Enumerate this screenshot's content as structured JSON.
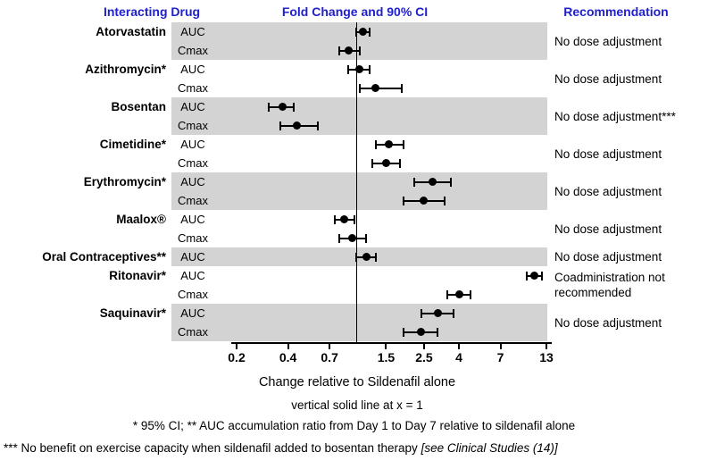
{
  "headers": {
    "drug": "Interacting Drug",
    "fold_change": "Fold Change and 90% CI",
    "recommendation": "Recommendation"
  },
  "colors": {
    "header_blue": "#2020CC",
    "band_gray": "#D3D3D3",
    "marker_black": "#000000"
  },
  "captions": {
    "xlabel": "Change relative to Sildenafil alone",
    "reference_note": "vertical solid line at x = 1"
  },
  "footnotes": {
    "line1": "* 95% CI;  ** AUC accumulation ratio from Day 1 to Day 7 relative to sildenafil alone",
    "line2_main": "*** No benefit on exercise capacity when sildenafil added to bosentan therapy ",
    "line2_italic": "[see Clinical Studies (14)]"
  },
  "chart_data": {
    "type": "scatter",
    "subtype": "forest-plot",
    "title": "Fold Change and 90% CI",
    "x_axis": {
      "scale": "log",
      "min": 0.2,
      "max": 13,
      "ticks": [
        0.2,
        0.4,
        0.7,
        1.5,
        2.5,
        4,
        7,
        13
      ],
      "tick_labels": [
        "0.2",
        "0.4",
        "0.7",
        "1.5",
        "2.5",
        "4",
        "7",
        "13"
      ],
      "reference_line_x": 1,
      "xlabel": "Change relative to Sildenafil alone"
    },
    "groups": [
      {
        "drug": "Atorvastatin",
        "shaded": true,
        "recommendation": "No dose adjustment",
        "rows": [
          {
            "metric": "AUC",
            "estimate": 1.1,
            "ci_low": 1.0,
            "ci_high": 1.2
          },
          {
            "metric": "Cmax",
            "estimate": 0.9,
            "ci_low": 0.8,
            "ci_high": 1.05
          }
        ]
      },
      {
        "drug": "Azithromycin*",
        "shaded": false,
        "recommendation": "No dose adjustment",
        "rows": [
          {
            "metric": "AUC",
            "estimate": 1.05,
            "ci_low": 0.9,
            "ci_high": 1.2
          },
          {
            "metric": "Cmax",
            "estimate": 1.3,
            "ci_low": 1.05,
            "ci_high": 1.85
          }
        ]
      },
      {
        "drug": "Bosentan",
        "shaded": true,
        "recommendation": "No dose adjustment***",
        "rows": [
          {
            "metric": "AUC",
            "estimate": 0.37,
            "ci_low": 0.31,
            "ci_high": 0.43
          },
          {
            "metric": "Cmax",
            "estimate": 0.45,
            "ci_low": 0.36,
            "ci_high": 0.6
          }
        ]
      },
      {
        "drug": "Cimetidine*",
        "shaded": false,
        "recommendation": "No dose adjustment",
        "rows": [
          {
            "metric": "AUC",
            "estimate": 1.55,
            "ci_low": 1.3,
            "ci_high": 1.9
          },
          {
            "metric": "Cmax",
            "estimate": 1.5,
            "ci_low": 1.25,
            "ci_high": 1.8
          }
        ]
      },
      {
        "drug": "Erythromycin*",
        "shaded": true,
        "recommendation": "No dose adjustment",
        "rows": [
          {
            "metric": "AUC",
            "estimate": 2.8,
            "ci_low": 2.2,
            "ci_high": 3.6
          },
          {
            "metric": "Cmax",
            "estimate": 2.5,
            "ci_low": 1.9,
            "ci_high": 3.3
          }
        ]
      },
      {
        "drug": "Maalox®",
        "shaded": false,
        "recommendation": "No dose adjustment",
        "rows": [
          {
            "metric": "AUC",
            "estimate": 0.85,
            "ci_low": 0.75,
            "ci_high": 0.98
          },
          {
            "metric": "Cmax",
            "estimate": 0.95,
            "ci_low": 0.8,
            "ci_high": 1.15
          }
        ]
      },
      {
        "drug": "Oral Contraceptives**",
        "shaded": true,
        "recommendation": "No dose adjustment",
        "rows": [
          {
            "metric": "AUC",
            "estimate": 1.15,
            "ci_low": 1.0,
            "ci_high": 1.3
          }
        ]
      },
      {
        "drug": "Ritonavir*",
        "shaded": false,
        "recommendation": "Coadministration not recommended",
        "rows": [
          {
            "metric": "AUC",
            "estimate": 11.0,
            "ci_low": 10.0,
            "ci_high": 12.2
          },
          {
            "metric": "Cmax",
            "estimate": 4.0,
            "ci_low": 3.4,
            "ci_high": 4.7
          }
        ]
      },
      {
        "drug": "Saquinavir*",
        "shaded": true,
        "recommendation": "No dose adjustment",
        "rows": [
          {
            "metric": "AUC",
            "estimate": 3.0,
            "ci_low": 2.4,
            "ci_high": 3.7
          },
          {
            "metric": "Cmax",
            "estimate": 2.4,
            "ci_low": 1.9,
            "ci_high": 3.0
          }
        ]
      }
    ]
  }
}
